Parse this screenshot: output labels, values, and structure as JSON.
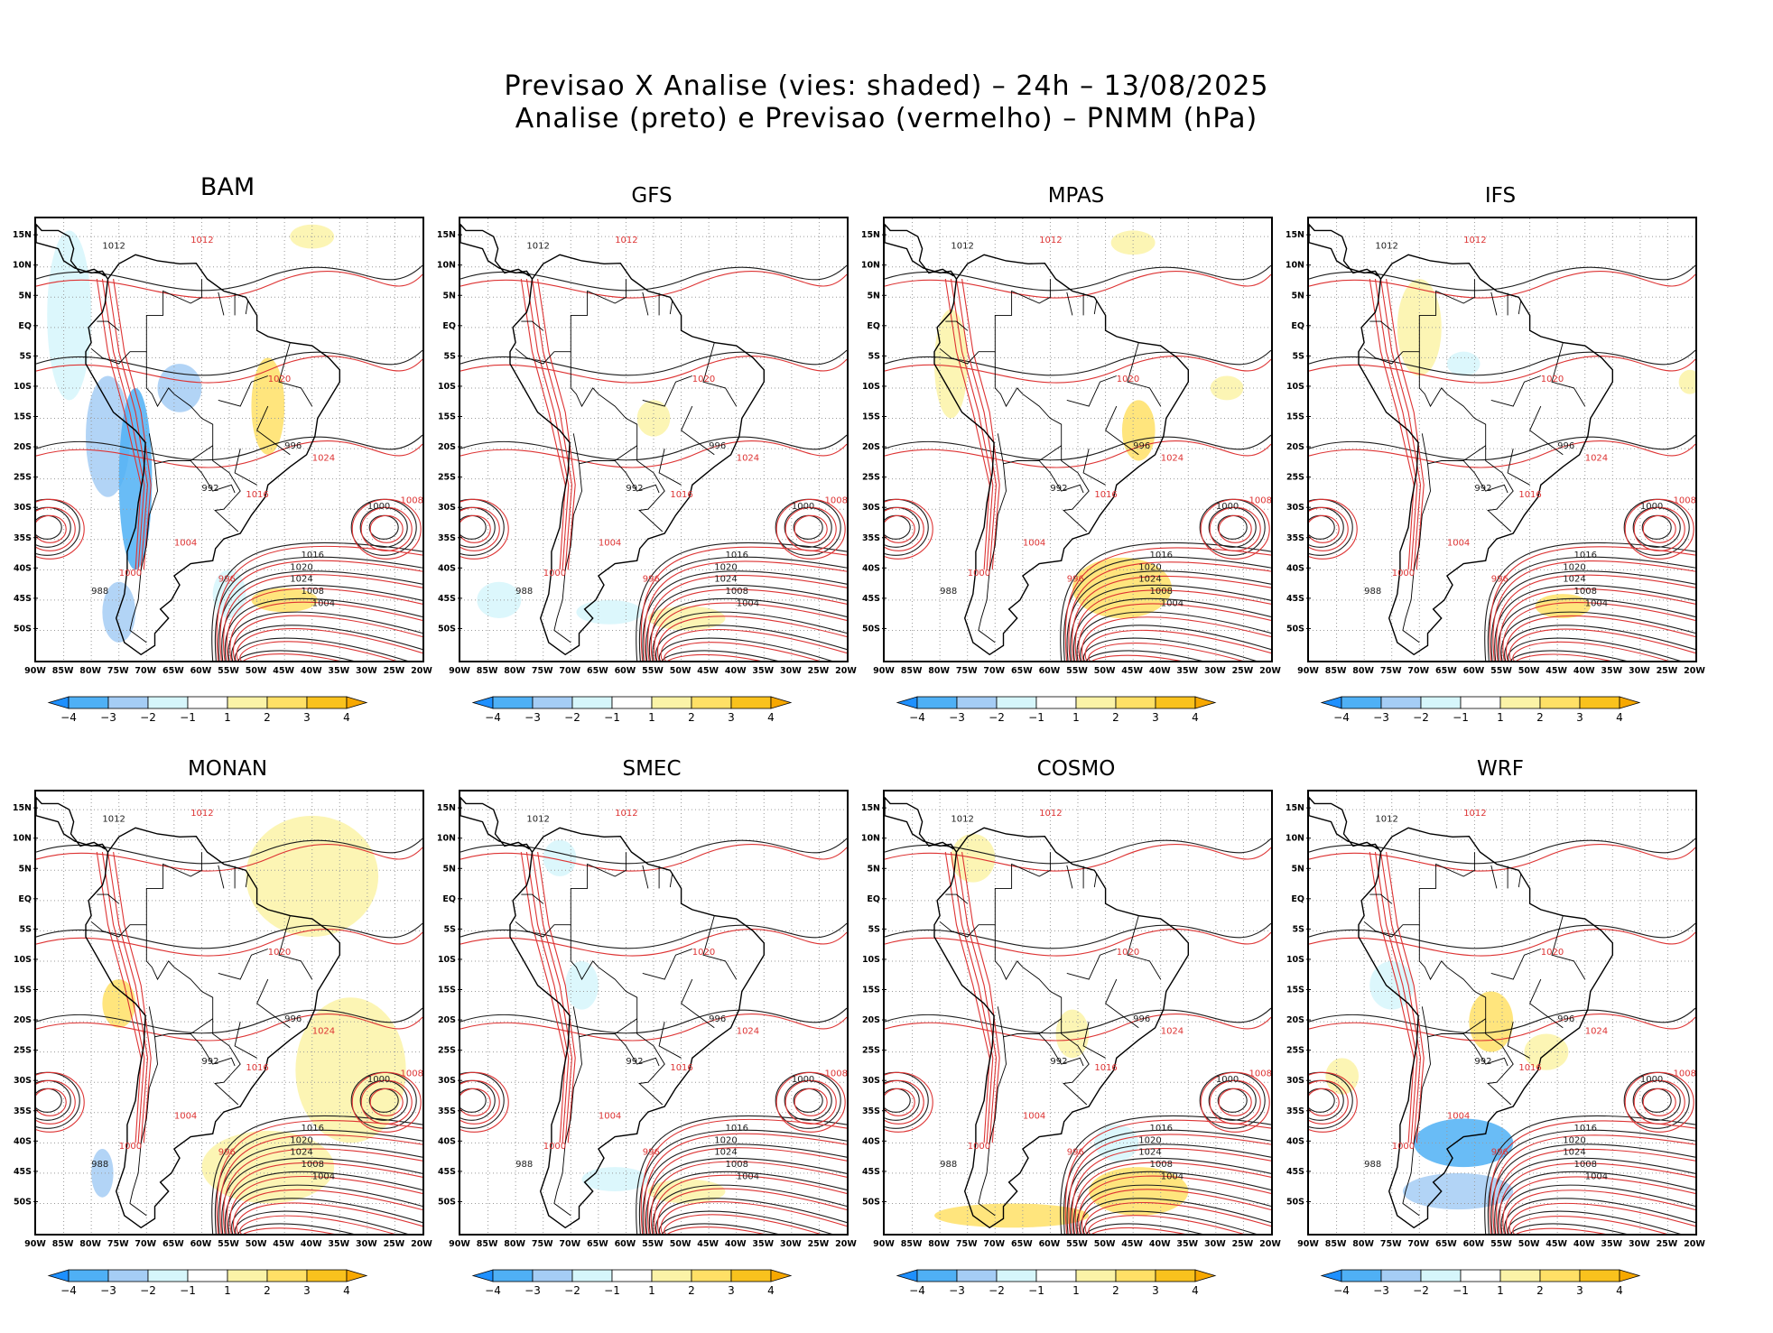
{
  "title_line1": "Previsao X Analise (vies: shaded) – 24h – 13/08/2025",
  "title_line2": "Analise (preto) e Previsao (vermelho) – PNMM (hPa)",
  "panels": [
    {
      "name": "BAM"
    },
    {
      "name": "GFS"
    },
    {
      "name": "MPAS"
    },
    {
      "name": "IFS"
    },
    {
      "name": "MONAN"
    },
    {
      "name": "SMEC"
    },
    {
      "name": "COSMO"
    },
    {
      "name": "WRF"
    }
  ],
  "lat_ticks": [
    "15N",
    "10N",
    "5N",
    "EQ",
    "5S",
    "10S",
    "15S",
    "20S",
    "25S",
    "30S",
    "35S",
    "40S",
    "45S",
    "50S"
  ],
  "lon_ticks": [
    "90W",
    "85W",
    "80W",
    "75W",
    "70W",
    "65W",
    "60W",
    "55W",
    "50W",
    "45W",
    "40W",
    "35W",
    "30W",
    "25W",
    "20W"
  ],
  "colorbar_labels": [
    "−4",
    "−3",
    "−2",
    "−1",
    "1",
    "2",
    "3",
    "4"
  ],
  "colorbar_colors": [
    "#1e90ff",
    "#4fb0f5",
    "#a5cdf5",
    "#d6f6fb",
    "#ffffff",
    "#fbf3a7",
    "#ffe066",
    "#f9c21d",
    "#f7a800"
  ],
  "contour_labels": {
    "analysis": [
      "1012",
      "1016",
      "1020",
      "1024",
      "1008",
      "1004",
      "1000",
      "996",
      "992",
      "988"
    ],
    "forecast": [
      "1012",
      "1016",
      "1020",
      "1024",
      "1008",
      "1004",
      "1000",
      "996"
    ]
  },
  "colors": {
    "analysis": "#1c1c1c",
    "forecast": "#dd3333",
    "land": "#000000"
  }
}
